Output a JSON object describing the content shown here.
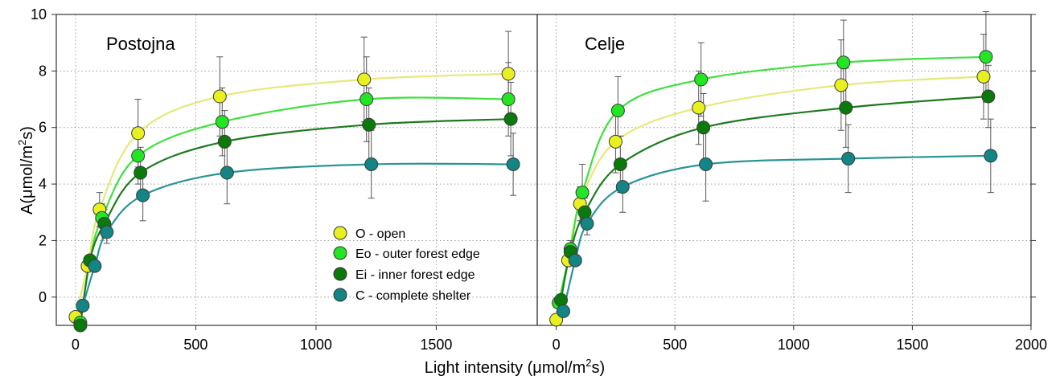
{
  "figure": {
    "ylabel_prefix": "A(μmol/m",
    "ylabel_sup": "2",
    "ylabel_suffix": "s)",
    "xlabel_prefix": "Light intensity (μmol/m",
    "xlabel_sup": "2",
    "xlabel_suffix": "s)",
    "legend": [
      {
        "label": "O - open",
        "color": "#e8f020"
      },
      {
        "label": "Eo - outer forest edge",
        "color": "#22e622"
      },
      {
        "label": "Ei - inner forest edge",
        "color": "#0a7a0a"
      },
      {
        "label": "C - complete shelter",
        "color": "#138585"
      }
    ],
    "line_colors": [
      "#e6e87a",
      "#3ee03e",
      "#1f7a1f",
      "#2a9595"
    ]
  },
  "chart_data": [
    {
      "type": "scatter",
      "title": "Postojna",
      "xlim": [
        -80,
        1920
      ],
      "ylim": [
        -1,
        10
      ],
      "xticks": [
        0,
        500,
        1000,
        1500
      ],
      "yticks": [
        0,
        2,
        4,
        6,
        8,
        10
      ],
      "grid": "dotted",
      "legend": "bottom-right",
      "series": [
        {
          "name": "O - open",
          "x": [
            0,
            50,
            100,
            260,
            600,
            1200,
            1800
          ],
          "y": [
            -0.7,
            1.1,
            3.1,
            5.8,
            7.1,
            7.7,
            7.9
          ],
          "err": [
            0.1,
            0.2,
            0.6,
            1.2,
            1.4,
            1.5,
            1.5
          ]
        },
        {
          "name": "Eo - outer forest edge",
          "x": [
            20,
            60,
            110,
            260,
            610,
            1210,
            1800
          ],
          "y": [
            -0.9,
            1.3,
            2.8,
            5.0,
            6.2,
            7.0,
            7.0
          ],
          "err": [
            0.1,
            0.2,
            0.5,
            1.0,
            1.2,
            1.5,
            1.3
          ]
        },
        {
          "name": "Ei - inner forest edge",
          "x": [
            20,
            60,
            120,
            270,
            620,
            1220,
            1810
          ],
          "y": [
            -1.0,
            1.3,
            2.6,
            4.4,
            5.5,
            6.1,
            6.3
          ],
          "err": [
            0.1,
            0.2,
            0.5,
            0.9,
            1.1,
            1.3,
            1.3
          ]
        },
        {
          "name": "C - complete shelter",
          "x": [
            30,
            80,
            130,
            280,
            630,
            1230,
            1820
          ],
          "y": [
            -0.3,
            1.1,
            2.3,
            3.6,
            4.4,
            4.7,
            4.7
          ],
          "err": [
            0.1,
            0.2,
            0.4,
            0.9,
            1.1,
            1.2,
            1.1
          ]
        }
      ]
    },
    {
      "type": "scatter",
      "title": "Celje",
      "xlim": [
        -80,
        2000
      ],
      "ylim": [
        -1,
        10
      ],
      "xticks": [
        0,
        500,
        1000,
        1500,
        2000
      ],
      "yticks": [
        0,
        2,
        4,
        6,
        8,
        10
      ],
      "grid": "dotted",
      "series": [
        {
          "name": "O - open",
          "x": [
            0,
            50,
            100,
            250,
            600,
            1200,
            1800
          ],
          "y": [
            -0.8,
            1.3,
            3.3,
            5.5,
            6.7,
            7.5,
            7.8
          ],
          "err": [
            0.1,
            0.2,
            0.6,
            1.1,
            1.3,
            1.6,
            1.5
          ]
        },
        {
          "name": "Eo - outer forest edge",
          "x": [
            10,
            60,
            110,
            260,
            610,
            1210,
            1810
          ],
          "y": [
            -0.2,
            1.7,
            3.7,
            6.6,
            7.7,
            8.3,
            8.5
          ],
          "err": [
            0.1,
            0.3,
            1.0,
            1.2,
            1.3,
            1.5,
            1.6
          ]
        },
        {
          "name": "Ei - inner forest edge",
          "x": [
            20,
            60,
            120,
            270,
            620,
            1220,
            1820
          ],
          "y": [
            -0.1,
            1.6,
            3.0,
            4.7,
            6.0,
            6.7,
            7.1
          ],
          "err": [
            0.1,
            0.2,
            0.5,
            1.0,
            1.2,
            1.4,
            1.1
          ]
        },
        {
          "name": "C - complete shelter",
          "x": [
            30,
            80,
            130,
            280,
            630,
            1230,
            1830
          ],
          "y": [
            -0.5,
            1.3,
            2.6,
            3.9,
            4.7,
            4.9,
            5.0
          ],
          "err": [
            0.1,
            0.2,
            0.4,
            0.9,
            1.3,
            1.2,
            1.3
          ]
        }
      ]
    }
  ]
}
